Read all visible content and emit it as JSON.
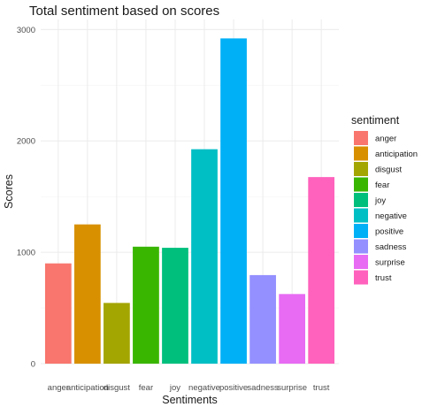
{
  "chart_data": {
    "type": "bar",
    "title": "Total sentiment based on scores",
    "xlabel": "Sentiments",
    "ylabel": "Scores",
    "ylim": [
      0,
      3000
    ],
    "yticks": [
      0,
      1000,
      2000,
      3000
    ],
    "grid": true,
    "legend_position": "right",
    "legend_title": "sentiment",
    "categories": [
      "anger",
      "anticipation",
      "disgust",
      "fear",
      "joy",
      "negative",
      "positive",
      "sadness",
      "surprise",
      "trust"
    ],
    "values": [
      900,
      1250,
      545,
      1050,
      1040,
      1925,
      2920,
      795,
      625,
      1675
    ],
    "colors": [
      "#F8766D",
      "#D89000",
      "#A3A500",
      "#39B600",
      "#00BF7D",
      "#00BFC4",
      "#00B0F6",
      "#9590FF",
      "#E76BF3",
      "#FF62BC"
    ]
  }
}
